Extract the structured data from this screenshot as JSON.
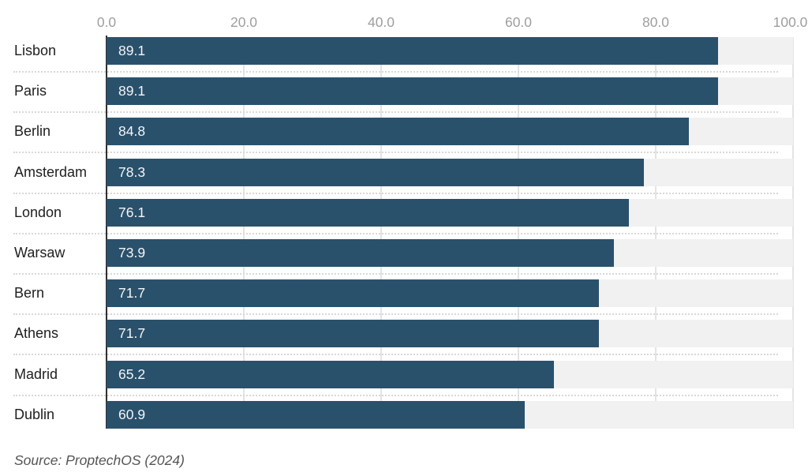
{
  "colors": {
    "bar": "#2a516c",
    "track": "#f1f1f1",
    "grid": "#e4e4e4",
    "axis_line": "#2f2f2f",
    "tick_label": "#9e9e9e",
    "row_label": "#202020",
    "value_label": "#f5f5f5",
    "separator": "#d8d8d8",
    "source": "#555555"
  },
  "axis": {
    "ticks": [
      "0.0",
      "20.0",
      "40.0",
      "60.0",
      "80.0",
      "100.0"
    ],
    "tick_values": [
      0,
      20,
      40,
      60,
      80,
      100
    ]
  },
  "source_note": "Source: ProptechOS (2024)",
  "chart_data": {
    "type": "bar",
    "orientation": "horizontal",
    "categories": [
      "Lisbon",
      "Paris",
      "Berlin",
      "Amsterdam",
      "London",
      "Warsaw",
      "Bern",
      "Athens",
      "Madrid",
      "Dublin"
    ],
    "values": [
      89.1,
      89.1,
      84.8,
      78.3,
      76.1,
      73.9,
      71.7,
      71.7,
      65.2,
      60.9
    ],
    "title": "",
    "xlabel": "",
    "ylabel": "",
    "xlim": [
      0,
      100
    ],
    "grid": true,
    "gridline_values": [
      20,
      40,
      60,
      80,
      100
    ],
    "value_labels_inside_bars": true,
    "axis_position": "top",
    "source": "Source: ProptechOS (2024)"
  }
}
